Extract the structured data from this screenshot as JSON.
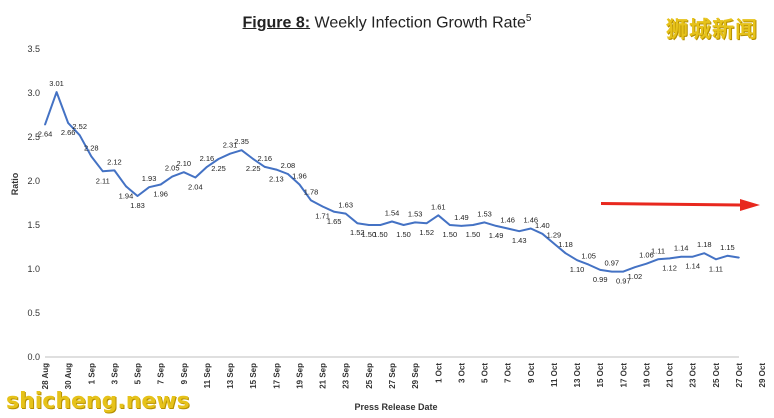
{
  "chart_data": {
    "type": "line",
    "title_prefix": "Figure 8:",
    "title": "Weekly Infection Growth Rate",
    "title_superscript": "5",
    "xlabel": "Press Release Date",
    "ylabel": "Ratio",
    "ylim": [
      0,
      3.5
    ],
    "yticks": [
      "0.0",
      "0.5",
      "1.0",
      "1.5",
      "2.0",
      "2.5",
      "3.0",
      "3.5"
    ],
    "xticks": [
      "28 Aug",
      "30 Aug",
      "1 Sep",
      "3 Sep",
      "5 Sep",
      "7 Sep",
      "9 Sep",
      "11 Sep",
      "13 Sep",
      "15 Sep",
      "17 Sep",
      "19 Sep",
      "21 Sep",
      "23 Sep",
      "25 Sep",
      "27 Sep",
      "29 Sep",
      "1 Oct",
      "3 Oct",
      "5 Oct",
      "7 Oct",
      "9 Oct",
      "11 Oct",
      "13 Oct",
      "15 Oct",
      "17 Oct",
      "19 Oct",
      "21 Oct",
      "23 Oct",
      "25 Oct",
      "27 Oct",
      "29 Oct"
    ],
    "values": [
      2.64,
      3.01,
      2.66,
      2.52,
      2.28,
      2.11,
      2.12,
      1.94,
      1.83,
      1.93,
      1.96,
      2.05,
      2.1,
      2.04,
      2.16,
      2.25,
      2.31,
      2.35,
      2.25,
      2.16,
      2.13,
      2.08,
      1.96,
      1.78,
      1.71,
      1.65,
      1.63,
      1.52,
      1.5,
      1.5,
      1.54,
      1.5,
      1.53,
      1.52,
      1.61,
      1.5,
      1.49,
      1.5,
      1.53,
      1.49,
      1.46,
      1.43,
      1.46,
      1.4,
      1.29,
      1.18,
      1.1,
      1.05,
      0.99,
      0.97,
      0.97,
      1.02,
      1.06,
      1.11,
      1.12,
      1.14,
      1.14,
      1.18,
      1.11,
      1.15,
      1.13
    ],
    "labels": [
      "2.64",
      "3.01",
      "2.66",
      "2.52",
      "2.28",
      "2.11",
      "2.12",
      "1.94",
      "1.83",
      "1.93",
      "1.96",
      "2.05",
      "2.10",
      "2.04",
      "2.16",
      "2.25",
      "2.31",
      "2.35",
      "2.25",
      "2.16",
      "2.13",
      "2.08",
      "1.96",
      "1.78",
      "1.71",
      "1.65",
      "1.63",
      "1.52",
      "1.50",
      "1.50",
      "1.54",
      "1.50",
      "1.53",
      "1.52",
      "1.61",
      "1.50",
      "1.49",
      "1.50",
      "1.53",
      "1.49",
      "1.46",
      "1.43",
      "1.46",
      "1.40",
      "1.29",
      "1.18",
      "1.10",
      "1.05",
      "0.99",
      "0.97",
      "0.97",
      "1.02",
      "1.06",
      "1.11",
      "1.12",
      "1.14",
      "1.14",
      "1.18",
      "1.11",
      "1.15",
      ""
    ],
    "label_side": [
      "down",
      "up",
      "down",
      "up",
      "up",
      "down",
      "up",
      "down",
      "down",
      "up",
      "down",
      "up",
      "up",
      "down",
      "up",
      "down",
      "up",
      "up",
      "down",
      "up",
      "down",
      "up",
      "up",
      "up",
      "down",
      "down",
      "up",
      "down",
      "down",
      "down",
      "up",
      "down",
      "up",
      "down",
      "up",
      "down",
      "up",
      "down",
      "up",
      "down",
      "up",
      "down",
      "up",
      "up",
      "up",
      "up",
      "down",
      "up",
      "down",
      "up",
      "down",
      "down",
      "up",
      "up",
      "down",
      "up",
      "down",
      "up",
      "down",
      "up",
      "down"
    ],
    "line_color": "#4472c4",
    "annotation_arrow_color": "#e8281e",
    "grid": false
  },
  "watermarks": {
    "top_right": "狮城新闻",
    "bottom_left": "shicheng.news"
  }
}
